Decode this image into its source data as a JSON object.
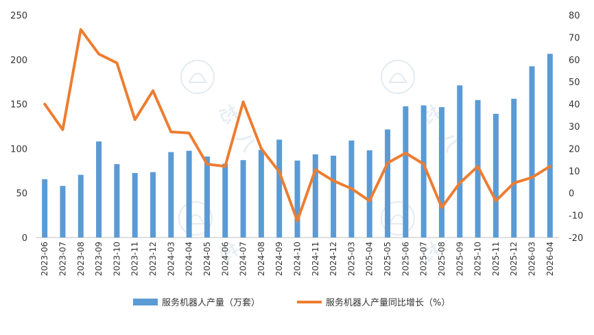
{
  "chart_data": {
    "type": "bar",
    "categories": [
      "2023-06",
      "2023-07",
      "2023-08",
      "2023-09",
      "2023-10",
      "2023-11",
      "2023-12",
      "2024-03",
      "2024-04",
      "2024-05",
      "2024-06",
      "2024-07",
      "2024-08",
      "2024-09",
      "2024-10",
      "2024-11",
      "2024-12",
      "2025-03",
      "2025-04",
      "2025-05",
      "2025-06",
      "2025-07",
      "2025-08",
      "2025-09",
      "2025-10",
      "2025-11",
      "2025-12",
      "2026-03",
      "2026-04"
    ],
    "series": [
      {
        "name": "服务机器人产量（万套）",
        "type": "bar",
        "axis": "left",
        "color": "#5b9bd5",
        "values": [
          65.5,
          58,
          70.5,
          108,
          82.5,
          72.5,
          73.5,
          96,
          97.5,
          91,
          83,
          87,
          98.5,
          110,
          86.5,
          93.5,
          92,
          109,
          98,
          121.5,
          147.5,
          148.5,
          146.5,
          171,
          154.5,
          139,
          156,
          192.5,
          206.5
        ]
      },
      {
        "name": "服务机器人产量同比增长（%）",
        "type": "line",
        "axis": "right",
        "color": "#ed7d31",
        "values": [
          40,
          28.5,
          73.5,
          62.5,
          58.5,
          33,
          46,
          27.5,
          27,
          13,
          12,
          41,
          20,
          9.5,
          -12.5,
          10.5,
          5.5,
          2,
          -3.5,
          13.5,
          18,
          13,
          -6.5,
          4.5,
          12,
          -3.5,
          4.5,
          7,
          12
        ]
      }
    ],
    "yaxis_left": {
      "min": 0,
      "max": 250,
      "ticks": [
        "0",
        "50",
        "100",
        "150",
        "200",
        "250"
      ]
    },
    "yaxis_right": {
      "min": -20,
      "max": 80,
      "ticks": [
        "-20",
        "-10",
        "0",
        "10",
        "20",
        "30",
        "40",
        "50",
        "60",
        "70",
        "80"
      ]
    },
    "grid": false,
    "legend_position": "bottom",
    "title": "",
    "xlabel": "",
    "ylabel": ""
  }
}
